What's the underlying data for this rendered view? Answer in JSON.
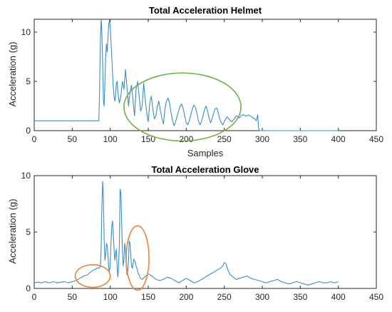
{
  "chart_data": [
    {
      "type": "line",
      "title": "Total Acceleration Helmet",
      "xlabel": "Samples",
      "ylabel": "Acceleration (g)",
      "xlim": [
        0,
        450
      ],
      "ylim": [
        0,
        11.3
      ],
      "xticks": [
        0,
        50,
        100,
        150,
        200,
        250,
        300,
        350,
        400,
        450
      ],
      "yticks": [
        0,
        5,
        10
      ],
      "grid": false,
      "line_color": "#3a8ec4",
      "series": [
        {
          "x": [
            0,
            20,
            40,
            60,
            80,
            85,
            86,
            87,
            88,
            89,
            90,
            91,
            92,
            93,
            94,
            95,
            96,
            97,
            98,
            99,
            100,
            101,
            102,
            103,
            104,
            105,
            106,
            107,
            108,
            109,
            110,
            112,
            114,
            116,
            118,
            120,
            122,
            124,
            126,
            128,
            130,
            132,
            134,
            136,
            138,
            140,
            142,
            144,
            146,
            148,
            150,
            152,
            154,
            156,
            158,
            160,
            162,
            164,
            166,
            168,
            170,
            172,
            174,
            176,
            178,
            180,
            182,
            184,
            186,
            188,
            190,
            192,
            194,
            196,
            198,
            200,
            202,
            204,
            206,
            208,
            210,
            212,
            214,
            216,
            218,
            220,
            222,
            224,
            226,
            228,
            230,
            232,
            234,
            236,
            238,
            240,
            242,
            244,
            246,
            248,
            250,
            252,
            254,
            256,
            258,
            260,
            262,
            264,
            266,
            268,
            270,
            272,
            274,
            276,
            278,
            280,
            282,
            284,
            286,
            288,
            290,
            292,
            294,
            295,
            296,
            297,
            300,
            320,
            340,
            360,
            380,
            400
          ],
          "y": [
            1.0,
            1.0,
            1.0,
            1.0,
            1.0,
            1.0,
            4.0,
            9.0,
            11.3,
            10.0,
            7.0,
            3.0,
            2.5,
            5.0,
            7.5,
            8.8,
            8.0,
            9.5,
            10.8,
            11.2,
            10.5,
            9.0,
            7.5,
            6.0,
            4.5,
            3.5,
            3.0,
            3.5,
            4.8,
            5.0,
            4.0,
            2.8,
            3.5,
            5.0,
            4.2,
            6.2,
            4.5,
            2.5,
            3.8,
            4.6,
            3.0,
            1.5,
            4.2,
            5.0,
            3.5,
            2.0,
            2.5,
            4.8,
            3.2,
            1.8,
            0.9,
            2.8,
            3.5,
            2.2,
            1.2,
            1.5,
            2.5,
            3.0,
            2.0,
            1.2,
            0.7,
            2.2,
            3.0,
            3.3,
            2.8,
            1.8,
            1.0,
            0.5,
            0.9,
            1.5,
            2.0,
            2.5,
            2.7,
            2.2,
            1.5,
            0.8,
            0.6,
            1.0,
            1.6,
            2.2,
            2.6,
            2.4,
            1.8,
            1.0,
            0.6,
            0.9,
            1.5,
            2.1,
            2.5,
            2.0,
            1.3,
            0.8,
            1.2,
            1.8,
            2.2,
            2.3,
            1.9,
            1.2,
            0.8,
            0.6,
            0.9,
            1.2,
            1.4,
            1.2,
            1.0,
            0.9,
            1.1,
            1.3,
            1.5,
            1.4,
            1.3,
            1.5,
            1.6,
            1.6,
            1.5,
            1.5,
            1.6,
            1.5,
            1.4,
            1.3,
            1.2,
            1.0,
            1.6,
            0.3,
            0.05,
            0.0,
            0.0,
            0.0,
            0.0,
            0.0,
            0.0,
            0.0
          ]
        }
      ],
      "annotations": [
        {
          "shape": "ellipse",
          "color": "#77ac48",
          "cx": 195,
          "cy": 2.4,
          "rx": 77,
          "ry": 3.45
        }
      ]
    },
    {
      "type": "line",
      "title": "Total Acceleration Glove",
      "xlabel": "",
      "ylabel": "Acceleration (g)",
      "xlim": [
        0,
        450
      ],
      "ylim": [
        0,
        10
      ],
      "xticks": [
        0,
        50,
        100,
        150,
        200,
        250,
        300,
        350,
        400,
        450
      ],
      "yticks": [
        0,
        5,
        10
      ],
      "grid": false,
      "line_color": "#3a8ec4",
      "series": [
        {
          "x": [
            0,
            5,
            10,
            15,
            20,
            25,
            30,
            35,
            40,
            45,
            50,
            55,
            60,
            65,
            70,
            75,
            80,
            83,
            85,
            87,
            88,
            89,
            90,
            91,
            92,
            93,
            94,
            95,
            96,
            97,
            98,
            99,
            100,
            101,
            102,
            103,
            104,
            105,
            106,
            107,
            108,
            109,
            110,
            111,
            112,
            113,
            114,
            115,
            116,
            117,
            118,
            119,
            120,
            121,
            122,
            123,
            124,
            125,
            126,
            127,
            128,
            129,
            130,
            131,
            132,
            133,
            134,
            135,
            136,
            137,
            138,
            139,
            140,
            142,
            145,
            150,
            155,
            160,
            165,
            170,
            175,
            180,
            185,
            190,
            195,
            200,
            205,
            210,
            215,
            220,
            225,
            230,
            235,
            240,
            245,
            248,
            250,
            252,
            255,
            258,
            262,
            266,
            270,
            275,
            280,
            285,
            290,
            295,
            300,
            305,
            310,
            315,
            320,
            325,
            330,
            335,
            340,
            345,
            350,
            355,
            360,
            365,
            370,
            375,
            380,
            385,
            390,
            395,
            400
          ],
          "y": [
            0.5,
            0.55,
            0.5,
            0.6,
            0.5,
            0.6,
            0.5,
            0.55,
            0.6,
            0.5,
            0.6,
            0.7,
            0.9,
            1.1,
            1.2,
            1.5,
            1.7,
            1.8,
            1.8,
            1.9,
            3.5,
            7.0,
            9.5,
            8.0,
            4.5,
            2.5,
            3.0,
            4.0,
            3.8,
            3.0,
            1.8,
            1.5,
            2.2,
            4.0,
            5.5,
            6.0,
            5.0,
            3.5,
            2.5,
            3.0,
            3.5,
            2.0,
            1.0,
            2.0,
            4.0,
            8.8,
            8.5,
            6.0,
            3.5,
            2.0,
            2.5,
            4.0,
            3.5,
            2.0,
            1.2,
            1.5,
            2.5,
            4.2,
            4.0,
            3.0,
            2.0,
            1.8,
            2.2,
            2.6,
            2.5,
            2.3,
            2.0,
            1.8,
            1.5,
            1.3,
            1.2,
            1.0,
            0.9,
            0.8,
            1.0,
            1.3,
            1.1,
            0.8,
            0.7,
            0.8,
            1.0,
            0.9,
            0.7,
            0.5,
            0.7,
            0.9,
            0.7,
            0.5,
            0.6,
            0.8,
            1.0,
            1.2,
            1.4,
            1.6,
            1.8,
            2.0,
            2.3,
            2.2,
            1.6,
            1.2,
            1.0,
            0.8,
            0.9,
            1.0,
            1.1,
            0.9,
            0.8,
            0.7,
            0.6,
            0.5,
            0.6,
            0.7,
            0.8,
            0.6,
            0.5,
            0.4,
            0.5,
            0.6,
            0.5,
            0.4,
            0.3,
            0.4,
            0.5,
            0.6,
            0.5,
            0.5,
            0.6,
            0.5,
            0.6
          ]
        }
      ],
      "annotations": [
        {
          "shape": "ellipse",
          "color": "#e8853b",
          "cx": 77,
          "cy": 1.1,
          "rx": 23,
          "ry": 1.0
        },
        {
          "shape": "ellipse",
          "color": "#e8853b",
          "cx": 136,
          "cy": 2.7,
          "rx": 15,
          "ry": 2.85
        }
      ]
    }
  ]
}
